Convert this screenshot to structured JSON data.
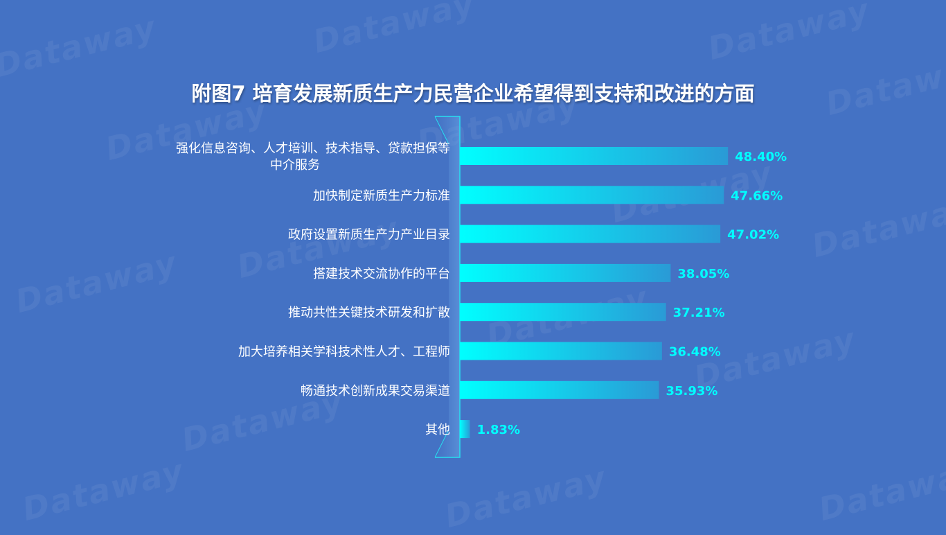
{
  "watermark_text": "Dataway",
  "title": "附图7  培育发展新质生产力民营企业希望得到支持和改进的方面",
  "colors": {
    "background": "#4472c4",
    "bar_start": "#00ffff",
    "bar_end": "#2a9ad6",
    "value_label": "#00ffff",
    "category_label": "#ffffff",
    "axis_line": "#27e0f0"
  },
  "chart_data": {
    "type": "bar",
    "orientation": "horizontal",
    "title": "附图7  培育发展新质生产力民营企业希望得到支持和改进的方面",
    "categories": [
      "强化信息咨询、人才培训、技术指导、贷款担保等中介服务",
      "加快制定新质生产力标准",
      "政府设置新质生产力产业目录",
      "搭建技术交流协作的平台",
      "推动共性关键技术研发和扩散",
      "加大培养相关学科技术性人才、工程师",
      "畅通技术创新成果交易渠道",
      "其他"
    ],
    "category_lines": [
      [
        "强化信息咨询、人才培训、技术指导、贷款担保等",
        "中介服务"
      ],
      [
        "加快制定新质生产力标准"
      ],
      [
        "政府设置新质生产力产业目录"
      ],
      [
        "搭建技术交流协作的平台"
      ],
      [
        "推动共性关键技术研发和扩散"
      ],
      [
        "加大培养相关学科技术性人才、工程师"
      ],
      [
        "畅通技术创新成果交易渠道"
      ],
      [
        "其他"
      ]
    ],
    "values": [
      48.4,
      47.66,
      47.02,
      38.05,
      37.21,
      36.48,
      35.93,
      1.83
    ],
    "value_labels": [
      "48.40%",
      "47.66%",
      "47.02%",
      "38.05%",
      "37.21%",
      "36.48%",
      "35.93%",
      "1.83%"
    ],
    "unit": "%",
    "xlim": [
      0,
      50
    ],
    "grid": false,
    "legend": "none"
  }
}
